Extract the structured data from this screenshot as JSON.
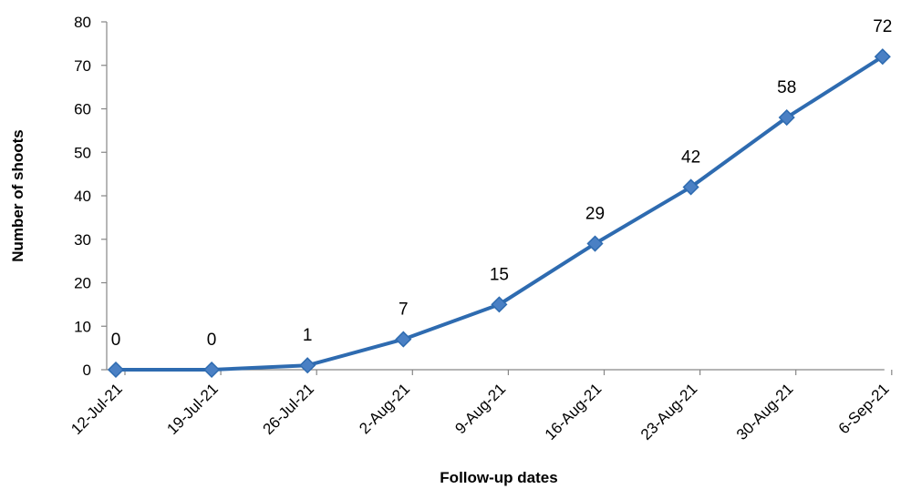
{
  "chart_data": {
    "type": "line",
    "title": "",
    "xlabel": "Follow-up dates",
    "ylabel": "Number of shoots",
    "categories": [
      "12-Jul-21",
      "19-Jul-21",
      "26-Jul-21",
      "2-Aug-21",
      "9-Aug-21",
      "16-Aug-21",
      "23-Aug-21",
      "30-Aug-21",
      "6-Sep-21"
    ],
    "series": [
      {
        "values": [
          0,
          0,
          1,
          7,
          15,
          29,
          42,
          58,
          72
        ]
      }
    ],
    "data_labels": [
      "0",
      "0",
      "1",
      "7",
      "15",
      "29",
      "42",
      "58",
      "72"
    ],
    "ylim": [
      0,
      80
    ],
    "yticks": [
      0,
      10,
      20,
      30,
      40,
      50,
      60,
      70,
      80
    ],
    "grid": false,
    "legend": "none",
    "marker": "diamond",
    "colors": {
      "line": "#2e6bb0",
      "marker": "#4a80c4",
      "marker_edge": "#2e6bb0",
      "axis": "#868686"
    }
  }
}
